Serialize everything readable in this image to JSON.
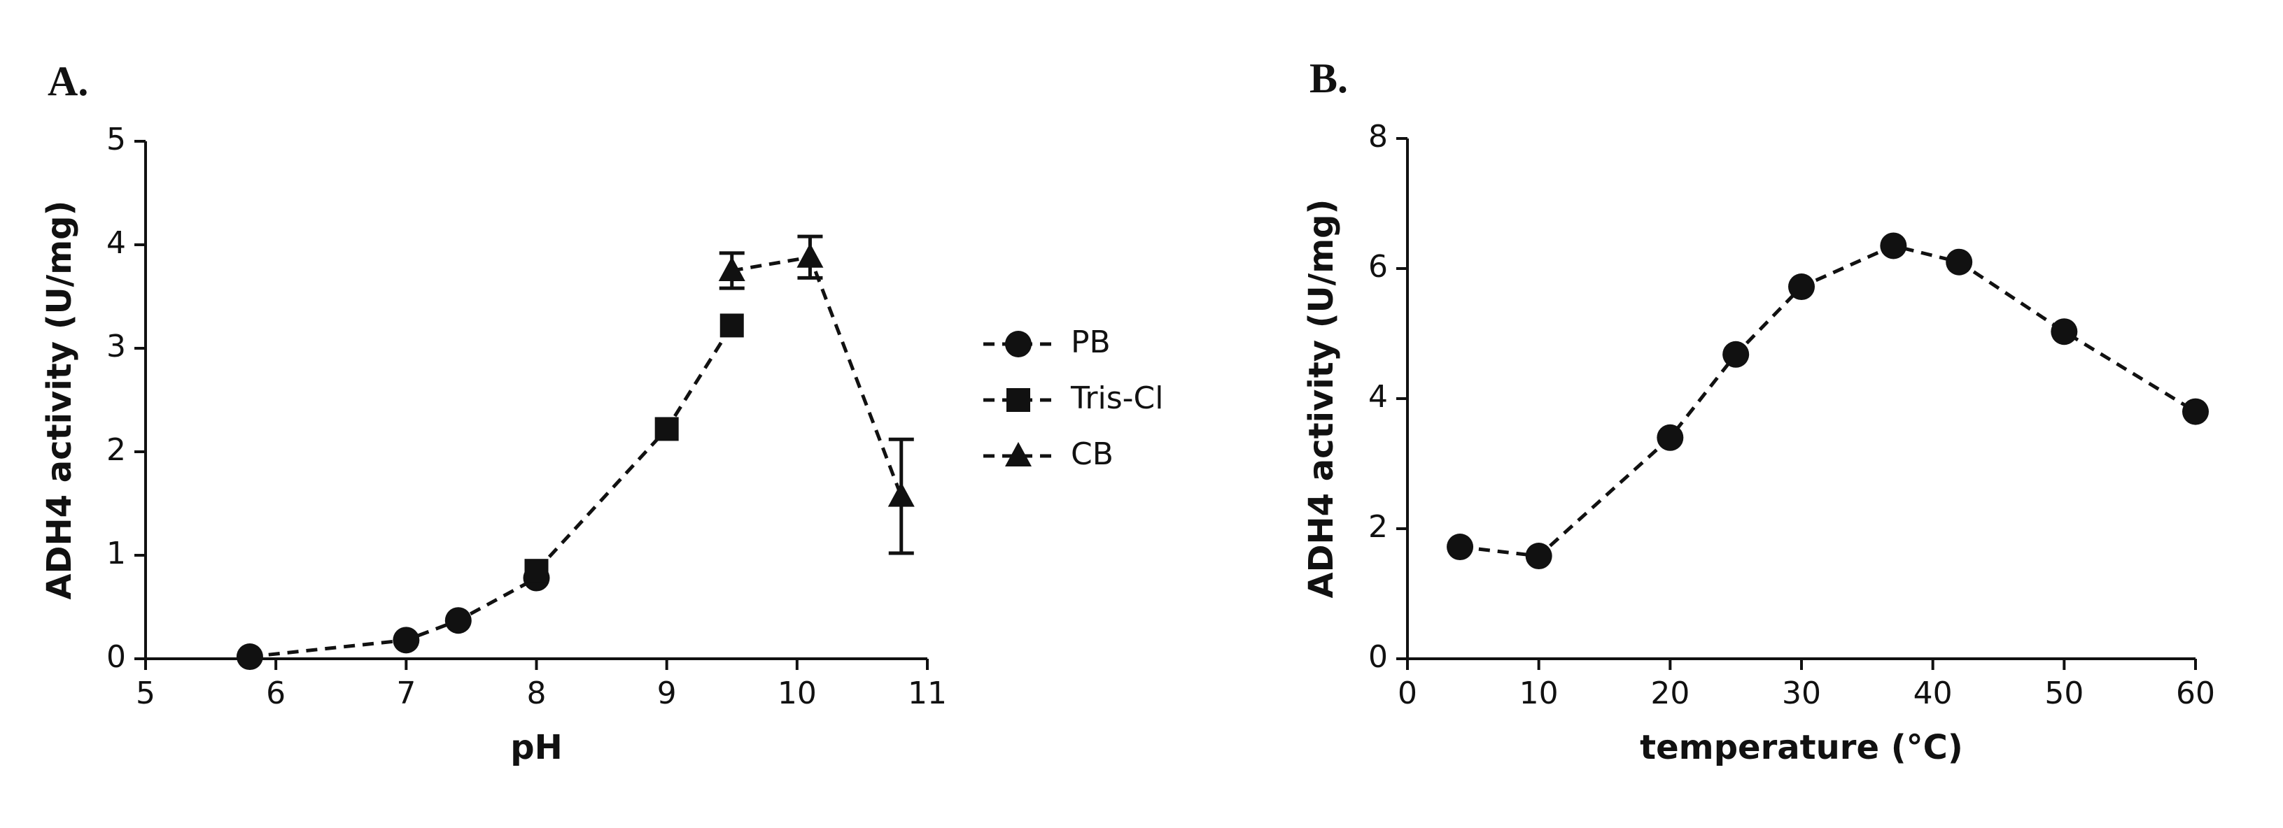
{
  "chart_data": [
    {
      "type": "line",
      "panel_label": "A.",
      "x_label": "pH",
      "y_label": "ADH4 activity (U/mg)",
      "xlim": [
        5,
        11
      ],
      "xticks": [
        5,
        6,
        7,
        8,
        9,
        10,
        11
      ],
      "ylim": [
        0,
        5
      ],
      "yticks": [
        0,
        1,
        2,
        3,
        4,
        5
      ],
      "legend": "right",
      "series": [
        {
          "name": "PB",
          "color": "#111111",
          "marker": "circle",
          "x": [
            5.8,
            7,
            7.4,
            8
          ],
          "values": [
            0.02,
            0.18,
            0.37,
            0.78
          ]
        },
        {
          "name": "Tris-Cl",
          "color": "#111111",
          "marker": "square",
          "x": [
            8,
            9,
            9.5
          ],
          "values": [
            0.85,
            2.22,
            3.22
          ]
        },
        {
          "name": "CB",
          "color": "#111111",
          "marker": "triangle",
          "x": [
            9.5,
            10.1,
            10.8
          ],
          "values": [
            3.75,
            3.88,
            1.57
          ],
          "errors": [
            0.17,
            0.2,
            0.55
          ]
        }
      ]
    },
    {
      "type": "line",
      "panel_label": "B.",
      "x_label": "temperature (°C)",
      "y_label": "ADH4 activity (U/mg)",
      "xlim": [
        0,
        60
      ],
      "xticks": [
        0,
        10,
        20,
        30,
        40,
        50,
        60
      ],
      "ylim": [
        0,
        8
      ],
      "yticks": [
        0,
        2,
        4,
        6,
        8
      ],
      "series": [
        {
          "color": "#111111",
          "marker": "circle",
          "x": [
            4,
            10,
            20,
            25,
            30,
            37,
            42,
            50,
            60
          ],
          "values": [
            1.72,
            1.58,
            3.4,
            4.68,
            5.72,
            6.35,
            6.1,
            5.03,
            3.8
          ]
        }
      ]
    }
  ]
}
